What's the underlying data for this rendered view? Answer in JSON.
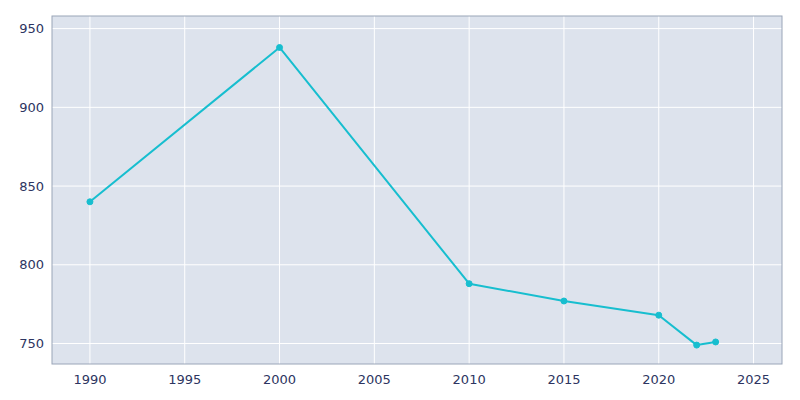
{
  "chart_data": {
    "type": "line",
    "x": [
      1990,
      2000,
      2010,
      2015,
      2020,
      2022,
      2023
    ],
    "values": [
      840,
      938,
      788,
      777,
      768,
      749,
      751
    ],
    "color": "#17becf",
    "marker": "circle",
    "xlim": [
      1988,
      2026.5
    ],
    "ylim": [
      737,
      958
    ],
    "xticks": [
      1990,
      1995,
      2000,
      2005,
      2010,
      2015,
      2020,
      2025
    ],
    "yticks": [
      750,
      800,
      850,
      900,
      950
    ],
    "grid": true
  }
}
